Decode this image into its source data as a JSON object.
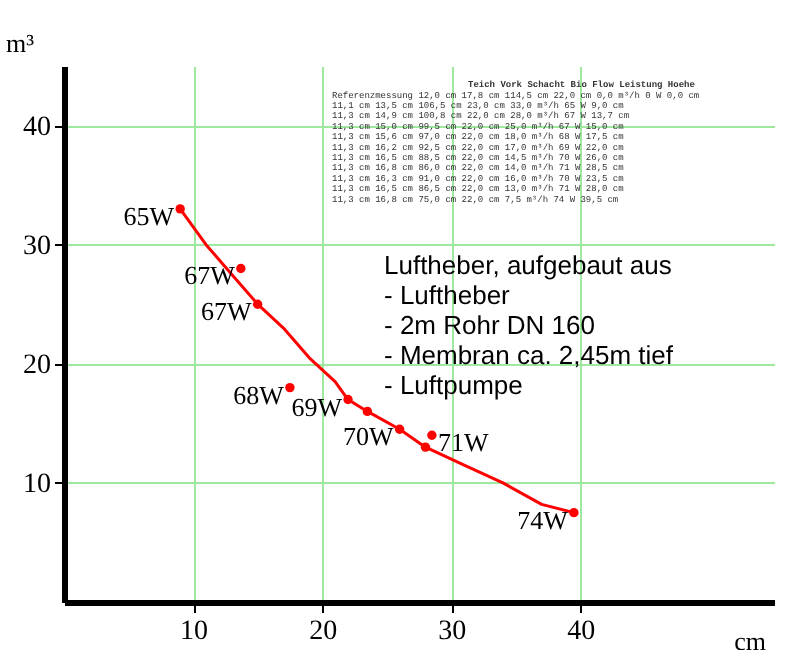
{
  "chart_data": {
    "type": "line",
    "xlabel": "cm",
    "ylabel": "m³",
    "xlim": [
      0,
      55
    ],
    "ylim": [
      0,
      45
    ],
    "xticks": [
      10,
      20,
      30,
      40
    ],
    "yticks": [
      10,
      20,
      30,
      40
    ],
    "grid": true,
    "series": [
      {
        "type": "scatter",
        "marker": "circle",
        "color": "#ff0000",
        "x": [
          9.0,
          13.7,
          15.0,
          17.5,
          22.0,
          26.0,
          28.5,
          23.5,
          28.0,
          39.5
        ],
        "values": [
          33.0,
          28.0,
          25.0,
          18.0,
          17.0,
          14.5,
          14.0,
          16.0,
          13.0,
          7.5
        ]
      },
      {
        "color": "#ff0000",
        "x": [
          9.0,
          11.0,
          13.0,
          15.0,
          17.0,
          19.0,
          21.0,
          22.0,
          23.5,
          26.0,
          28.0,
          31.0,
          34.0,
          37.0,
          39.5
        ],
        "values": [
          33.0,
          30.0,
          27.5,
          25.0,
          23.0,
          20.5,
          18.5,
          17.0,
          16.0,
          14.5,
          13.0,
          11.5,
          10.0,
          8.2,
          7.5
        ]
      }
    ],
    "annotations": [
      {
        "text": "65W",
        "x": 9.0,
        "y": 33.0
      },
      {
        "text": "67W",
        "x": 13.7,
        "y": 28.0
      },
      {
        "text": "67W",
        "x": 15.0,
        "y": 25.0
      },
      {
        "text": "68W",
        "x": 17.5,
        "y": 18.0
      },
      {
        "text": "69W",
        "x": 22.0,
        "y": 17.0
      },
      {
        "text": "70W",
        "x": 26.0,
        "y": 14.5
      },
      {
        "text": "71W",
        "x": 28.5,
        "y": 14.0
      },
      {
        "text": "74W",
        "x": 39.5,
        "y": 7.5
      },
      "Teich    Vork   Schacht     Bio     Flow   Leistung  Hoehe",
      "Referenzmessung  12,0 cm  17,8 cm  114,5 cm  22,0 cm   0,0 m³/h   0 W   0,0 cm",
      "                 11,1 cm  13,5 cm  106,5 cm  23,0 cm  33,0 m³/h  65 W   9,0 cm",
      "                 11,3 cm  14,9 cm  100,8 cm  22,0 cm  28,0 m³/h  67 W  13,7 cm",
      "                 11,3 cm  15,0 cm   99,5 cm  22,0 cm  25,0 m³/h  67 W  15,0 cm",
      "                 11,3 cm  15,6 cm   97,0 cm  22,0 cm  18,0 m³/h  68 W  17,5 cm",
      "                 11,3 cm  16,2 cm   92,5 cm  22,0 cm  17,0 m³/h  69 W  22,0 cm",
      "                 11,3 cm  16,5 cm   88,5 cm  22,0 cm  14,5 m³/h  70 W  26,0 cm",
      "                 11,3 cm  16,8 cm   86,0 cm  22,0 cm  14,0 m³/h  71 W  28,5 cm",
      "                 11,3 cm  16,3 cm   91,0 cm  22,0 cm  16,0 m³/h  70 W  23,5 cm",
      "                 11,3 cm  16,5 cm   86,5 cm  22,0 cm  13,0 m³/h  71 W  28,0 cm",
      "                 11,3 cm  16,8 cm   75,0 cm  22,0 cm   7,5 m³/h  74 W  39,5 cm",
      "Luftheber, aufgebaut aus",
      "- Luftheber",
      "- 2m Rohr DN 160",
      "- Membran ca. 2,45m tief",
      "- Luftpumpe"
    ]
  }
}
